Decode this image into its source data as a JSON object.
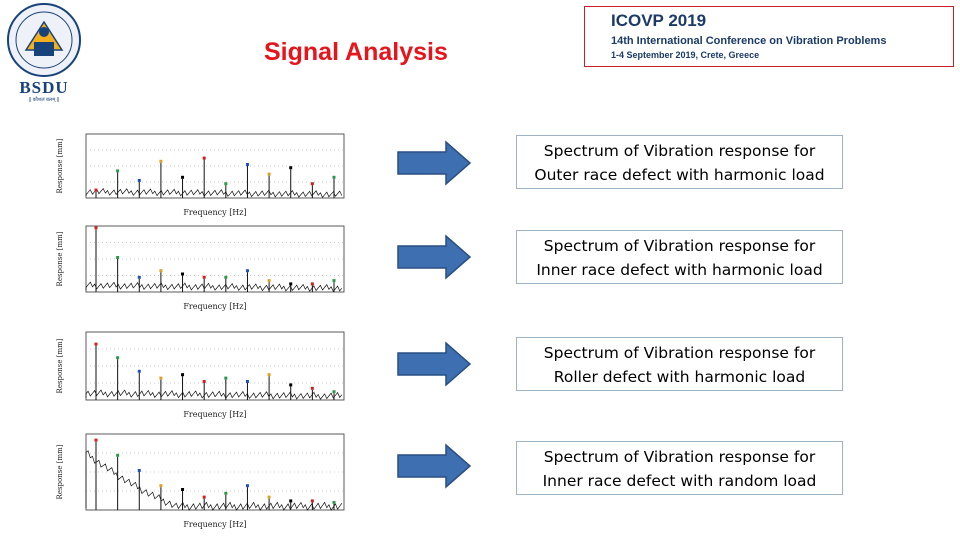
{
  "slide": {
    "title": "Signal Analysis",
    "logo": {
      "name": "BSDU",
      "tagline": "|| कौशलं बलम् ||"
    },
    "conference": {
      "title": "ICOVP 2019",
      "subtitle": "14th International Conference on Vibration Problems",
      "date": "1-4 September 2019, Crete, Greece"
    },
    "captions": [
      {
        "line1": "Spectrum of Vibration response for",
        "line2": "Outer race defect with harmonic load"
      },
      {
        "line1": "Spectrum of Vibration response for",
        "line2": "Inner race defect with harmonic load"
      },
      {
        "line1": "Spectrum of Vibration response for",
        "line2": "Roller defect with harmonic load"
      },
      {
        "line1": "Spectrum of Vibration response for",
        "line2": "Inner race defect with random load"
      }
    ],
    "colors": {
      "title": "#e8141b",
      "arrow_fill": "#3e6fb0",
      "arrow_stroke": "#2a4f82",
      "conf_text": "#1b3a68",
      "conf_border": "#c8202a"
    }
  },
  "chart_data": [
    {
      "type": "line",
      "xlabel": "Frequency [Hz]",
      "ylabel": "Response [mm]",
      "ticks_x": [
        "",
        "",
        "",
        ""
      ],
      "peaks": [
        0.1,
        0.4,
        0.25,
        0.55,
        0.3,
        0.6,
        0.2,
        0.5,
        0.35,
        0.45,
        0.2,
        0.3
      ]
    },
    {
      "type": "line",
      "xlabel": "Frequency [Hz]",
      "ylabel": "Response [mm]",
      "peaks": [
        0.95,
        0.5,
        0.2,
        0.3,
        0.25,
        0.2,
        0.2,
        0.3,
        0.15,
        0.1,
        0.1,
        0.15
      ]
    },
    {
      "type": "line",
      "xlabel": "Frequency [Hz]",
      "ylabel": "Response [mm]",
      "peaks": [
        0.8,
        0.6,
        0.4,
        0.3,
        0.35,
        0.25,
        0.3,
        0.25,
        0.35,
        0.2,
        0.15,
        0.1
      ]
    },
    {
      "type": "line",
      "xlabel": "Frequency [Hz]",
      "ylabel": "Response [mm]",
      "peaks": [
        0.9,
        0.7,
        0.5,
        0.3,
        0.25,
        0.15,
        0.2,
        0.3,
        0.15,
        0.1,
        0.1,
        0.08
      ]
    }
  ]
}
